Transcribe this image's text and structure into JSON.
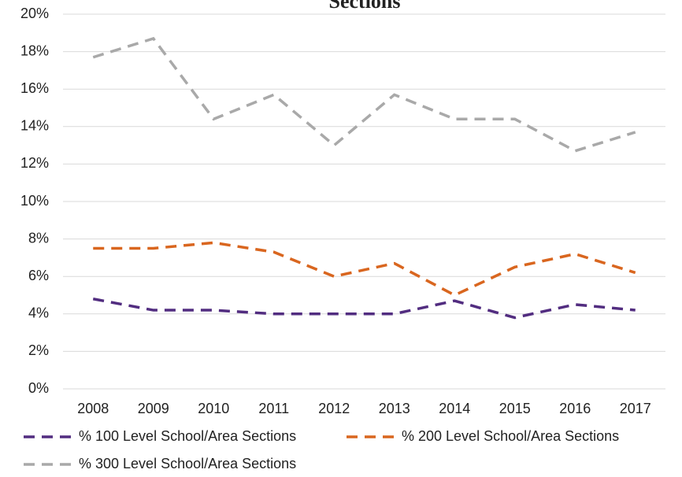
{
  "chart_data": {
    "type": "line",
    "title": "Sections",
    "categories": [
      "2008",
      "2009",
      "2010",
      "2011",
      "2012",
      "2013",
      "2014",
      "2015",
      "2016",
      "2017"
    ],
    "series": [
      {
        "name": "% 100 Level School/Area Sections",
        "color": "#522d80",
        "values": [
          4.8,
          4.2,
          4.2,
          4.0,
          4.0,
          4.0,
          4.7,
          3.8,
          4.5,
          4.2
        ]
      },
      {
        "name": "% 200 Level School/Area Sections",
        "color": "#d9661f",
        "values": [
          7.5,
          7.5,
          7.8,
          7.3,
          6.0,
          6.7,
          5.0,
          6.5,
          7.2,
          6.2
        ]
      },
      {
        "name": "% 300 Level School/Area Sections",
        "color": "#a9a9a9",
        "values": [
          17.7,
          18.7,
          14.4,
          15.7,
          13.0,
          15.7,
          14.4,
          14.4,
          12.7,
          13.7
        ]
      }
    ],
    "ylim": [
      0,
      20
    ],
    "yticks": [
      {
        "value": 0,
        "label": "0%"
      },
      {
        "value": 2,
        "label": "2%"
      },
      {
        "value": 4,
        "label": "4%"
      },
      {
        "value": 6,
        "label": "6%"
      },
      {
        "value": 8,
        "label": "8%"
      },
      {
        "value": 10,
        "label": "10%"
      },
      {
        "value": 12,
        "label": "12%"
      },
      {
        "value": 14,
        "label": "14%"
      },
      {
        "value": 16,
        "label": "16%"
      },
      {
        "value": 18,
        "label": "18%"
      },
      {
        "value": 20,
        "label": "20%"
      }
    ],
    "grid": true
  }
}
